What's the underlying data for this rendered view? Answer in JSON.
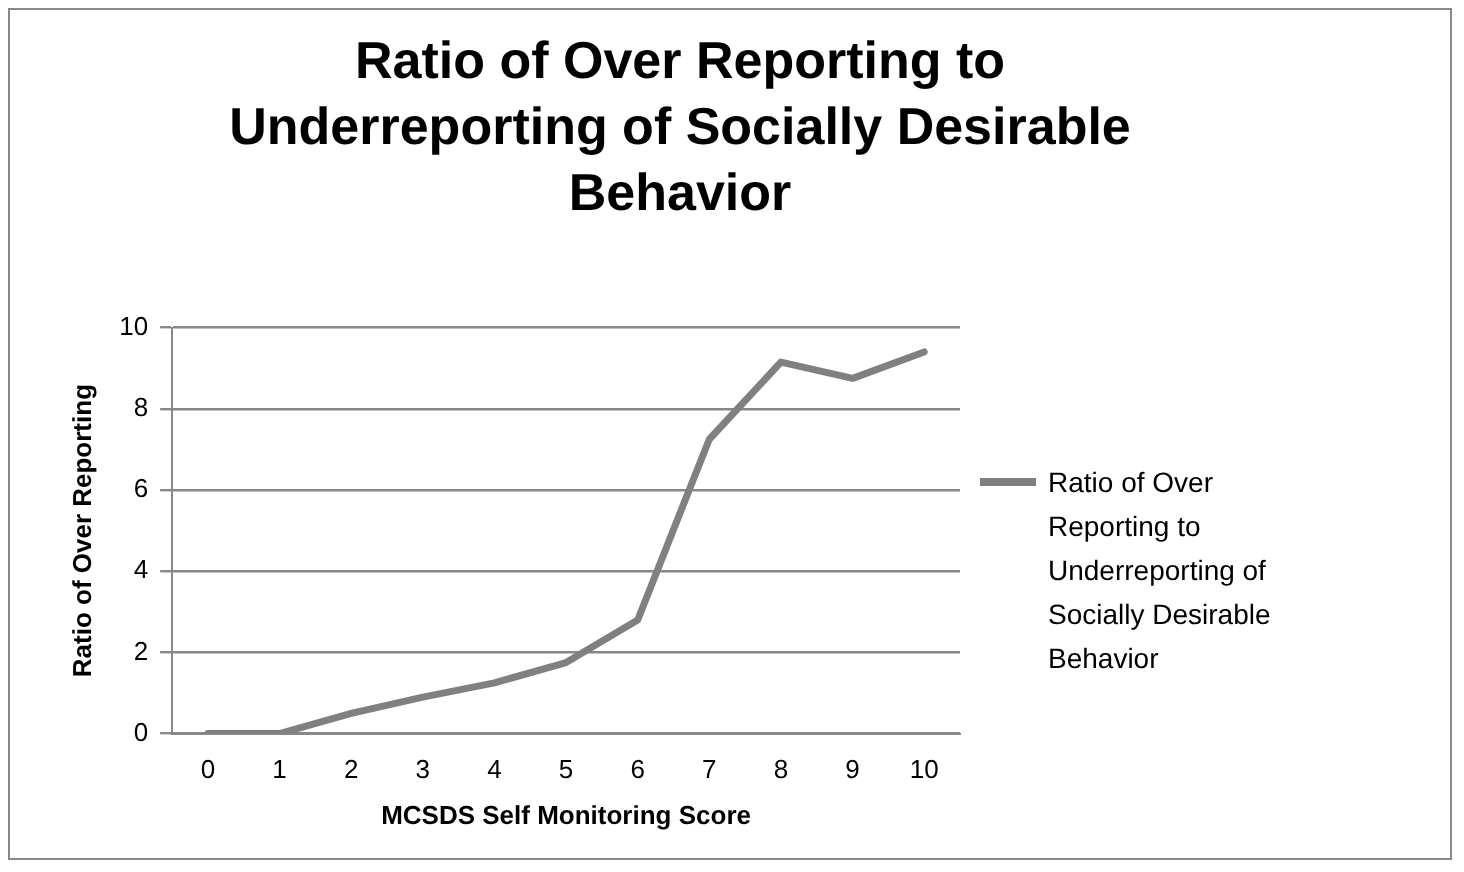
{
  "chart_data": {
    "type": "line",
    "title": "Ratio of Over Reporting to Underreporting of Socially Desirable Behavior",
    "xlabel": "MCSDS Self Monitoring Score",
    "ylabel": "Ratio of Over Reporting",
    "categories": [
      "0",
      "1",
      "2",
      "3",
      "4",
      "5",
      "6",
      "7",
      "8",
      "9",
      "10"
    ],
    "series": [
      {
        "name": "Ratio of Over Reporting to Underreporting of Socially Desirable Behavior",
        "color": "#808080",
        "values": [
          0,
          0,
          0.5,
          0.9,
          1.25,
          1.75,
          2.8,
          7.25,
          9.15,
          8.75,
          9.4
        ]
      }
    ],
    "ylim": [
      0,
      10
    ],
    "yticks": [
      0,
      2,
      4,
      6,
      8,
      10
    ],
    "grid": "y",
    "legend": "right",
    "marker": "none",
    "line_style": "solid"
  }
}
